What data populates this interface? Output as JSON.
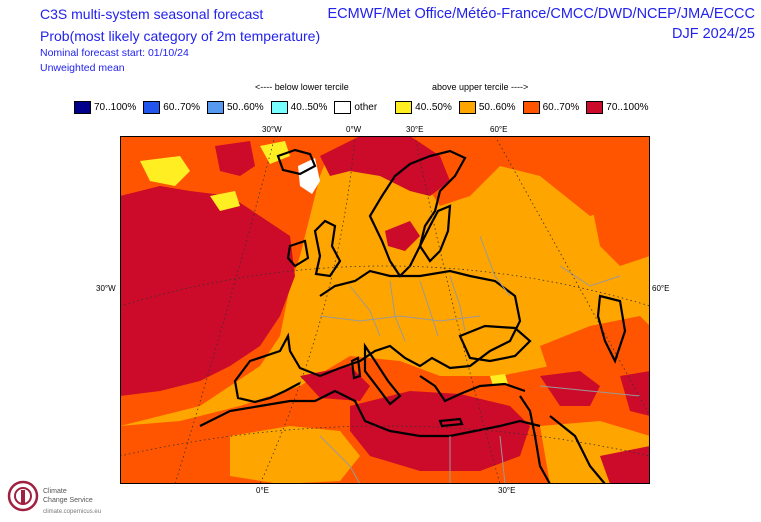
{
  "header": {
    "title_line1": "C3S multi-system seasonal forecast",
    "title_line2": "Prob(most likely category of 2m temperature)",
    "nominal": "Nominal forecast start: 01/10/24",
    "weighting": "Unweighted mean",
    "providers": "ECMWF/Met Office/Météo-France/CMCC/DWD/NCEP/JMA/ECCC",
    "season": "DJF 2024/25"
  },
  "legend": {
    "below_label": "<---- below lower tercile",
    "above_label": "above upper tercile ---->",
    "items": [
      {
        "label": "70..100%",
        "color": "#00008b"
      },
      {
        "label": "60..70%",
        "color": "#2255ee"
      },
      {
        "label": "50..60%",
        "color": "#5599f0"
      },
      {
        "label": "40..50%",
        "color": "#77ffff"
      },
      {
        "label": "other",
        "color": "#ffffff"
      },
      {
        "label": "40..50%",
        "color": "#ffee22"
      },
      {
        "label": "50..60%",
        "color": "#ffa500"
      },
      {
        "label": "60..70%",
        "color": "#ff5500"
      },
      {
        "label": "70..100%",
        "color": "#cc0a2a"
      }
    ]
  },
  "map": {
    "grid_labels": {
      "top": [
        "30°W",
        "0°W",
        "30°E",
        "60°E"
      ],
      "left": "30°W",
      "right": "60°E",
      "bottom": [
        "0°E",
        "30°E"
      ]
    },
    "colors": {
      "orange": "#ffa500",
      "dark_orange": "#ff5500",
      "red": "#cc0a2a",
      "yellow": "#ffee22",
      "white": "#ffffff"
    }
  },
  "logo": {
    "line1": "Climate",
    "line2": "Change Service",
    "url": "climate.copernicus.eu"
  }
}
